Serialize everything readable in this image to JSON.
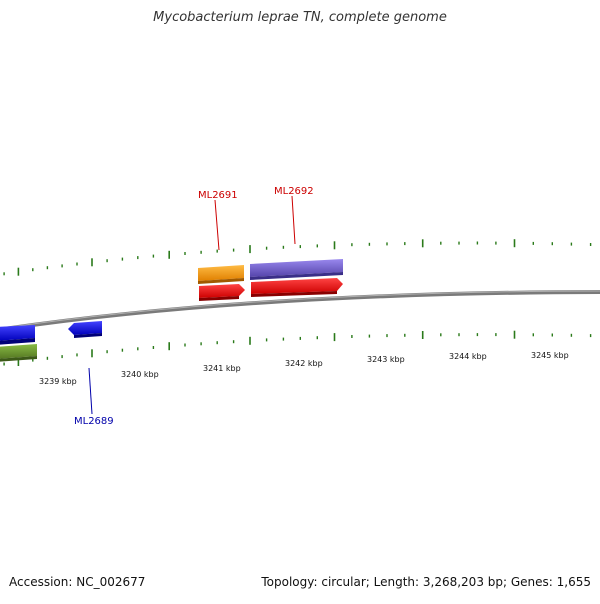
{
  "title": "Mycobacterium leprae TN, complete genome",
  "footer": {
    "accession": "Accession: NC_002677",
    "summary": "Topology: circular; Length: 3,268,203 bp; Genes: 1,655"
  },
  "scale_labels": [
    "3239 kbp",
    "3240 kbp",
    "3241 kbp",
    "3242 kbp",
    "3243 kbp",
    "3244 kbp",
    "3245 kbp"
  ],
  "gene_labels": [
    {
      "name": "ML2691",
      "color": "#cc0000"
    },
    {
      "name": "ML2692",
      "color": "#cc0000"
    },
    {
      "name": "ML2689",
      "color": "#0000aa"
    }
  ],
  "colors": {
    "backbone": "#888888",
    "tick": "#2a7a1a",
    "orange": "#ff9900",
    "purple": "#7766cc",
    "red": "#ff0000",
    "blue": "#0000ee",
    "green": "#669933"
  }
}
